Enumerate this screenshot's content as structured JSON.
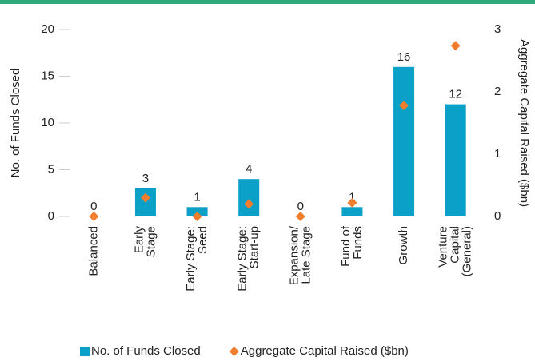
{
  "chart_data": {
    "type": "bar",
    "categories": [
      "Balanced",
      "Early\nStage",
      "Early Stage:\nSeed",
      "Early Stage:\nStart-up",
      "Expansion/\nLate Stage",
      "Fund of\nFunds",
      "Growth",
      "Venture\nCapital\n(General)"
    ],
    "series": [
      {
        "name": "No. of Funds Closed",
        "color": "#0aa0c8",
        "type": "bar",
        "values": [
          0,
          3,
          1,
          4,
          0,
          1,
          16,
          12
        ]
      },
      {
        "name": "Aggregate Capital Raised ($bn)",
        "color": "#f07e2e",
        "type": "scatter",
        "axis": "y2",
        "values": [
          0,
          0.3,
          0,
          0.2,
          0,
          0.22,
          1.78,
          2.74
        ]
      }
    ],
    "ylabel": "No. of Funds Closed",
    "y2label": "Aggregate Capital Raised ($bn)",
    "ylim": [
      0,
      20
    ],
    "yticks": [
      0,
      5,
      10,
      15,
      20
    ],
    "y2lim": [
      0,
      3
    ],
    "y2ticks": [
      0,
      1,
      2,
      3
    ],
    "legend": "bottom"
  }
}
